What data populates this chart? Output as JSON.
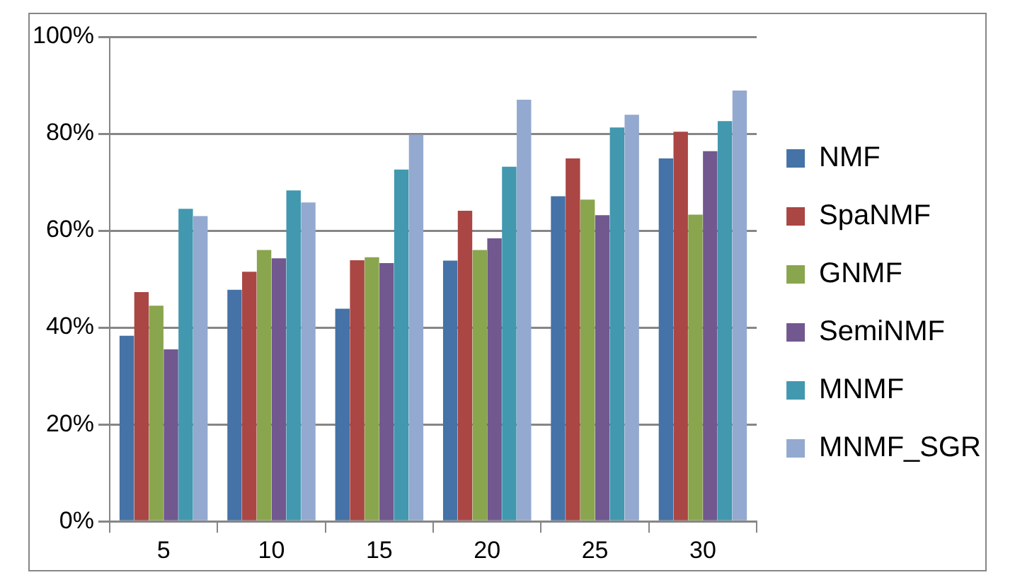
{
  "chart_data": {
    "type": "bar",
    "categories": [
      "5",
      "10",
      "15",
      "20",
      "25",
      "30"
    ],
    "series": [
      {
        "name": "NMF",
        "color": "#4572a7",
        "values": [
          38.3,
          47.8,
          43.9,
          53.8,
          67.1,
          74.9
        ]
      },
      {
        "name": "SpaNMF",
        "color": "#aa4643",
        "values": [
          47.3,
          51.5,
          53.9,
          64.1,
          74.9,
          80.4
        ]
      },
      {
        "name": "GNMF",
        "color": "#89a54e",
        "values": [
          44.5,
          56,
          54.5,
          56,
          66.4,
          63.3
        ]
      },
      {
        "name": "SemiNMF",
        "color": "#71588f",
        "values": [
          35.5,
          54.3,
          53.3,
          58.4,
          63.2,
          76.4
        ]
      },
      {
        "name": "MNMF",
        "color": "#4198af",
        "values": [
          64.5,
          68.3,
          72.6,
          73.2,
          81.3,
          82.6
        ]
      },
      {
        "name": "MNMF_SGR",
        "color": "#93a9cf",
        "values": [
          63,
          65.8,
          79.8,
          87,
          83.9,
          88.9
        ]
      }
    ],
    "ylim": [
      0,
      100
    ],
    "yticks": [
      {
        "value": 0,
        "label": "0%"
      },
      {
        "value": 20,
        "label": "20%"
      },
      {
        "value": 40,
        "label": "40%"
      },
      {
        "value": 60,
        "label": "60%"
      },
      {
        "value": 80,
        "label": "80%"
      },
      {
        "value": 100,
        "label": "100%"
      }
    ],
    "grid": "y",
    "legend": "right"
  }
}
